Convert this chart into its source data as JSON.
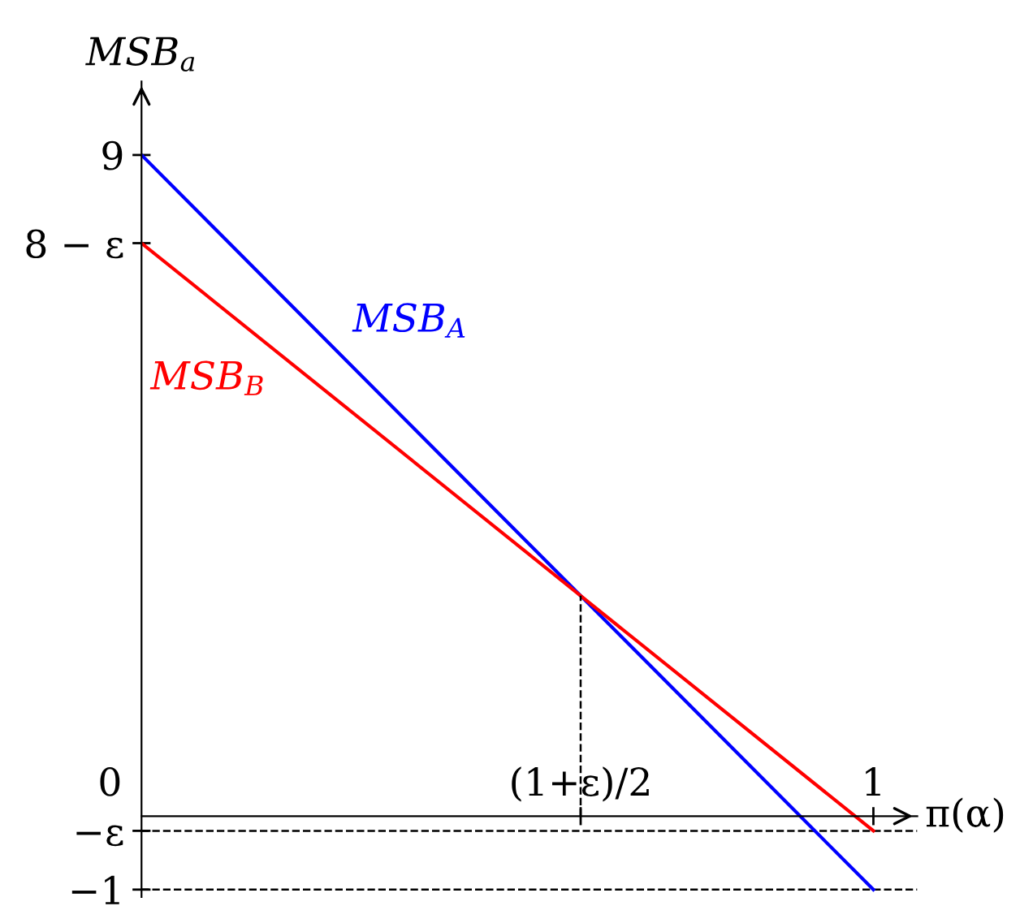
{
  "chart_data": {
    "type": "line",
    "xlabel": "π(α)",
    "ylabel": "MSB$_{a}$",
    "x": [
      0,
      1
    ],
    "series": [
      {
        "name": "MSB$_{A}$",
        "color": "#0000ff",
        "values": [
          9,
          -1
        ]
      },
      {
        "name": "MSB$_{B}$",
        "color": "#ff0000",
        "values": [
          7.8,
          -0.2
        ]
      },
      {
        "color": "#000000",
        "x": [
          0.6,
          0.6
        ],
        "values": [
          0,
          3
        ],
        "line_style": "dashed"
      }
    ],
    "xlim": [
      0,
      1.06
    ],
    "ylim": [
      -1.1,
      10
    ],
    "xticks": [
      0,
      {
        "value": 0.6,
        "label": "(1+ε)/2"
      },
      1
    ],
    "yticks": [
      {
        "value": -1,
        "label": "−1"
      },
      {
        "value": -0.2,
        "label": "−ε"
      },
      {
        "value": 7.8,
        "label": "8 − ε"
      },
      9
    ],
    "ref_lines": [
      {
        "axis": "y",
        "value": -0.2,
        "color": "#000000",
        "line_style": "dashed"
      },
      {
        "axis": "y",
        "value": -1,
        "color": "#000000",
        "line_style": "dashed"
      }
    ],
    "grid": false,
    "legend": false,
    "marker": "none",
    "line_style": "solid"
  }
}
